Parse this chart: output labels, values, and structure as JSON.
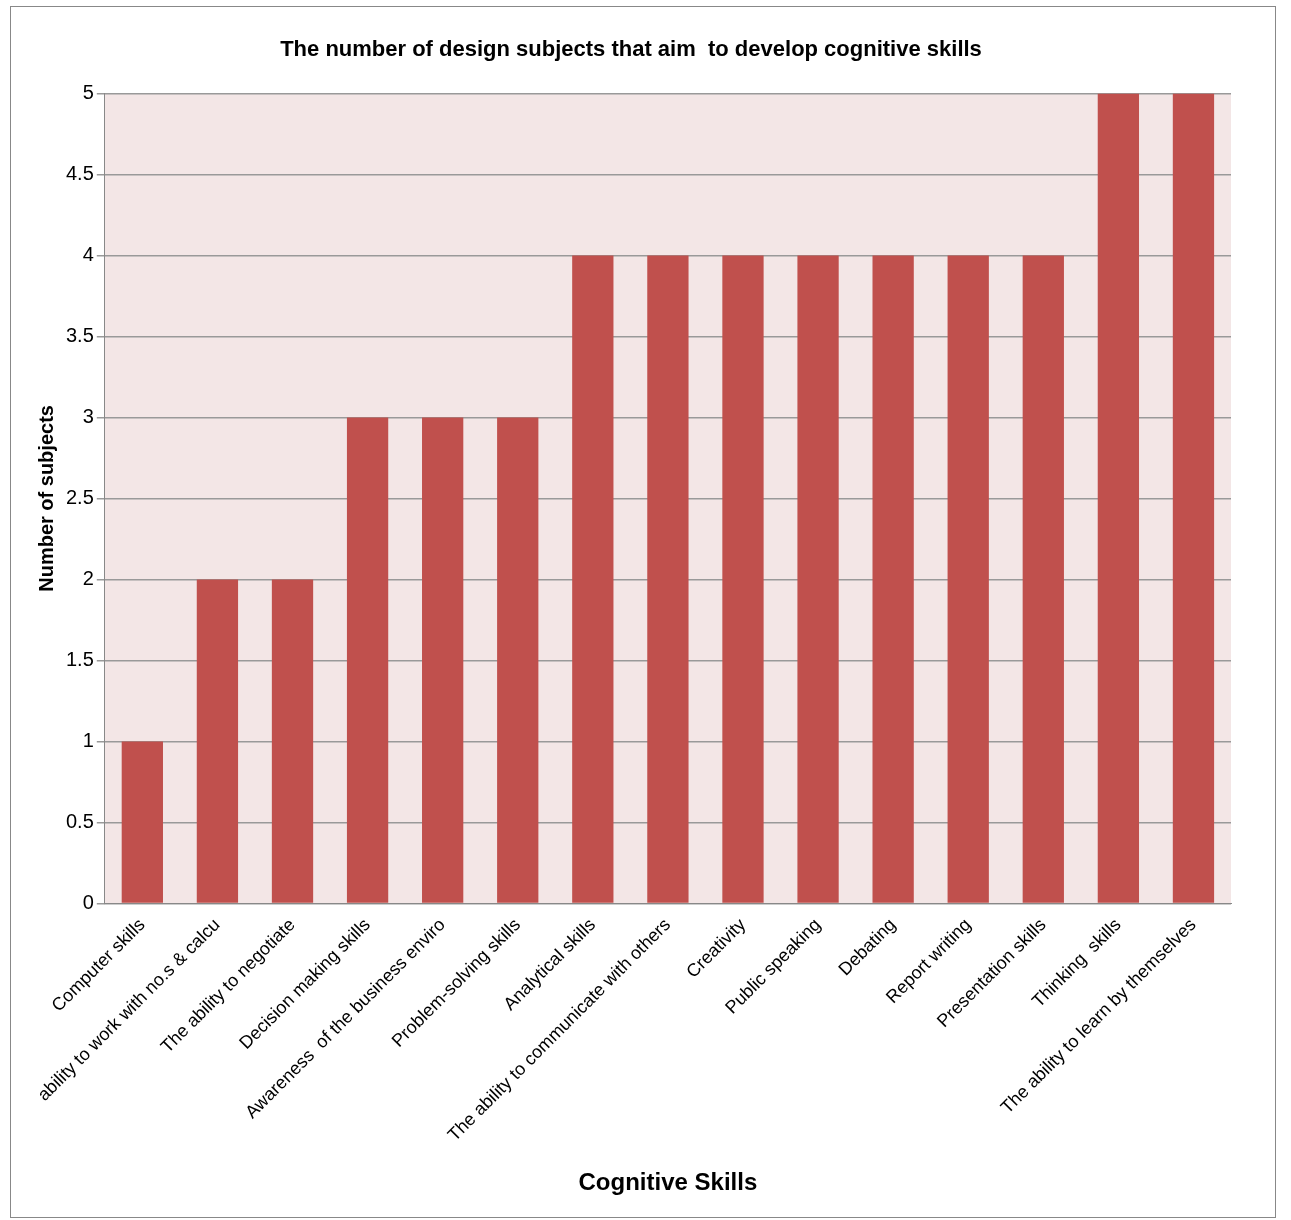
{
  "chart_data": {
    "type": "bar",
    "title": "The number of design subjects that aim  to develop cognitive skills",
    "xlabel": "Cognitive Skills",
    "ylabel": "Number of subjects",
    "categories": [
      "Computer skills",
      "ability to work with no.s & calcu",
      "The ability to negotiate",
      "Decision making skills",
      "Awareness  of the business enviro",
      "Problem-solving skills",
      "Analytical skills",
      "The ability to communicate with others",
      "Creativity",
      "Public speaking",
      "Debating",
      "Report writing",
      "Presentation skills",
      "Thinking  skills",
      "The ability to learn by themselves"
    ],
    "values": [
      1,
      2,
      2,
      3,
      3,
      3,
      4,
      4,
      4,
      4,
      4,
      4,
      4,
      5,
      5
    ],
    "color": "#c0504d",
    "ylim": [
      0,
      5
    ],
    "yticks": [
      0,
      0.5,
      1,
      1.5,
      2,
      2.5,
      3,
      3.5,
      4,
      4.5,
      5
    ],
    "grid": "y",
    "legend": false
  }
}
